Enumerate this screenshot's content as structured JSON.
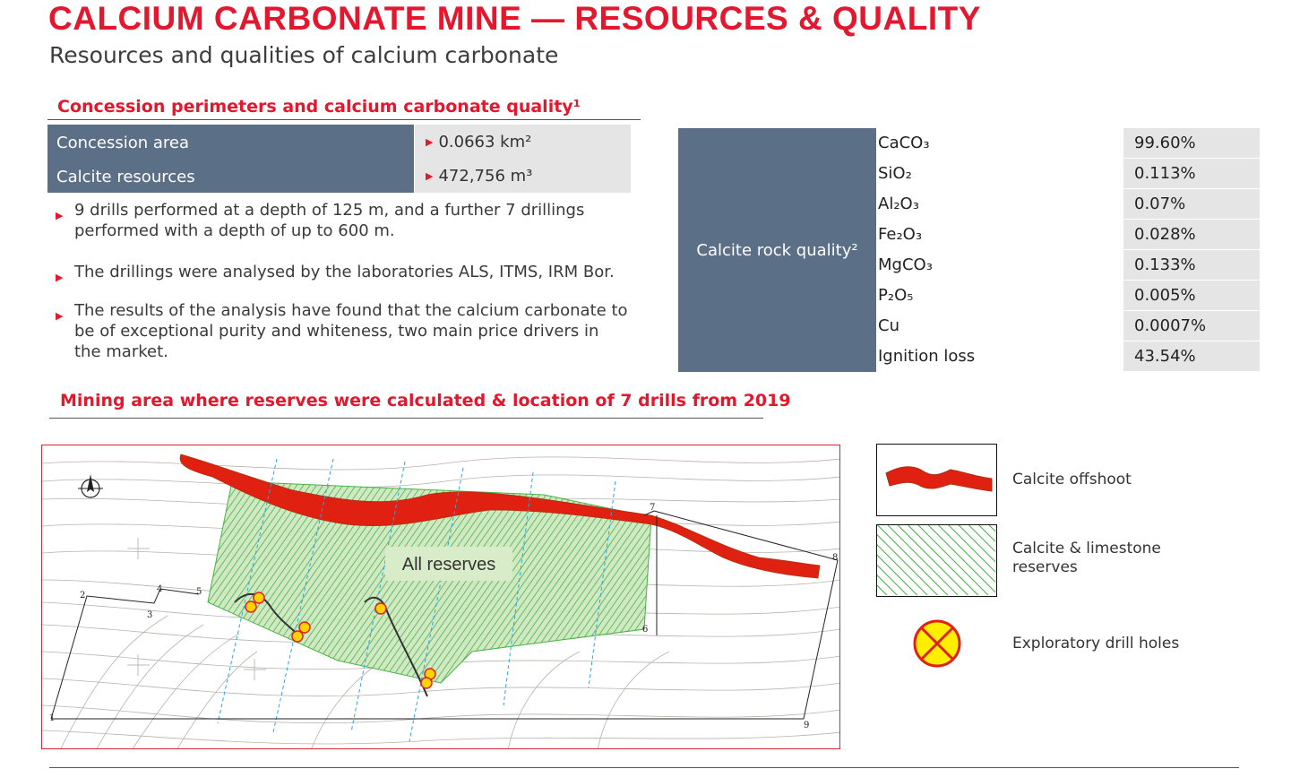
{
  "header": {
    "title": "CALCIUM CARBONATE MINE — RESOURCES & QUALITY",
    "subtitle": "Resources and qualities of calcium carbonate"
  },
  "concession": {
    "heading": "Concession perimeters and calcium carbonate quality¹",
    "rows": [
      {
        "label": "Concession area",
        "value": "0.0663 km²"
      },
      {
        "label": "Calcite resources",
        "value": "472,756 m³"
      }
    ],
    "bullets": [
      "9 drills performed at a depth of 125 m, and a further 7 drillings performed with a depth of up to 600 m.",
      "The drillings were analysed by the laboratories ALS, ITMS, IRM Bor.",
      "The results of the analysis have found that the calcium carbonate to be of exceptional purity and whiteness, two main price drivers in the market."
    ]
  },
  "quality": {
    "label": "Calcite rock quality²",
    "rows": [
      {
        "name": "CaCO₃",
        "value": "99.60%"
      },
      {
        "name": "SiO₂",
        "value": "0.113%"
      },
      {
        "name": "Al₂O₃",
        "value": "0.07%"
      },
      {
        "name": "Fe₂O₃",
        "value": "0.028%"
      },
      {
        "name": "MgCO₃",
        "value": "0.133%"
      },
      {
        "name": "P₂O₅",
        "value": "0.005%"
      },
      {
        "name": "Cu",
        "value": "0.0007%"
      },
      {
        "name": "Ignition loss",
        "value": "43.54%"
      }
    ]
  },
  "mining": {
    "heading": "Mining area where reserves were calculated & location of 7 drills from 2019",
    "map_label": "All reserves",
    "point_labels": [
      "1",
      "2",
      "3",
      "4",
      "5",
      "6",
      "7",
      "8",
      "9"
    ]
  },
  "legend": {
    "items": [
      {
        "label": "Calcite offshoot",
        "icon": "calcite-offshoot-swatch"
      },
      {
        "label": "Calcite & limestone reserves",
        "icon": "reserves-hatch-swatch"
      },
      {
        "label": "Exploratory drill holes",
        "icon": "drill-hole-icon"
      }
    ]
  },
  "colors": {
    "accent": "#e3172d",
    "table_blue": "#5b6f86",
    "table_grey": "#e5e5e5",
    "reserves_green": "#3fae3f",
    "offshoot_red": "#e02010"
  }
}
